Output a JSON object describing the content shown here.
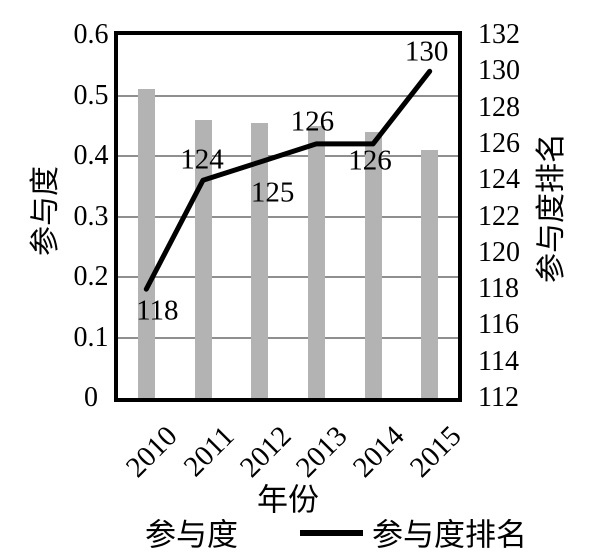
{
  "chart_data": {
    "type": "bar",
    "subtype": "combo-bar-line-dual-axis",
    "categories": [
      "2010",
      "2011",
      "2012",
      "2013",
      "2014",
      "2015"
    ],
    "series": [
      {
        "name": "参与度",
        "type": "bar",
        "axis": "left",
        "values": [
          0.51,
          0.46,
          0.455,
          0.45,
          0.44,
          0.41
        ]
      },
      {
        "name": "参与度排名",
        "type": "line",
        "axis": "right",
        "values": [
          118,
          124,
          125,
          126,
          126,
          130
        ],
        "point_labels": [
          "118",
          "124",
          "125",
          "126",
          "126",
          "130"
        ]
      }
    ],
    "title": "",
    "xlabel": "年份",
    "left_axis": {
      "label": "参与度",
      "min": 0,
      "max": 0.6,
      "ticks": [
        "0.6",
        "0.5",
        "0.4",
        "0.3",
        "0.2",
        "0.1",
        "0"
      ]
    },
    "right_axis": {
      "label": "参与度排名",
      "min": 112,
      "max": 132,
      "ticks": [
        "132",
        "130",
        "128",
        "126",
        "124",
        "122",
        "120",
        "118",
        "116",
        "114",
        "112"
      ]
    },
    "grid": "horizontal gridlines at 0.1 steps (0.1–0.5)",
    "gridlines_at": [
      0.5,
      0.4,
      0.3,
      0.2,
      0.1
    ],
    "legend": {
      "position": "bottom",
      "items": [
        {
          "label": "参与度",
          "swatch": "gray-bar"
        },
        {
          "label": "参与度排名",
          "swatch": "black-line"
        }
      ]
    },
    "colors": {
      "bar": "#b3b3b3",
      "line": "#000000",
      "gridline": "#8f8f8f",
      "border": "#000000",
      "text": "#000000",
      "background": "#ffffff"
    }
  }
}
